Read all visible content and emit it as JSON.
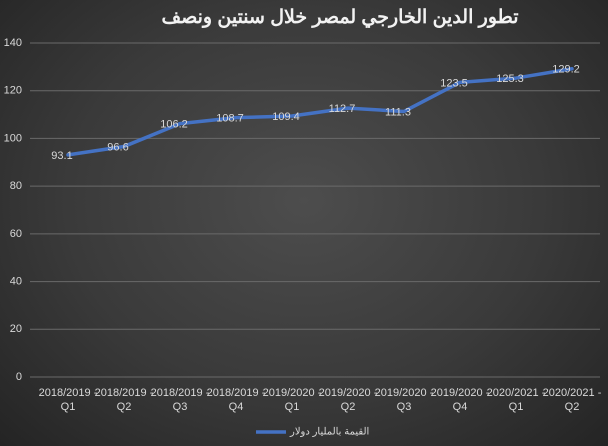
{
  "chart_data": {
    "type": "line",
    "title": "تطور الدين الخارجي لمصر خلال سنتين ونصف",
    "categories": [
      "2018/2019 - Q1",
      "2018/2019 - Q2",
      "2018/2019 - Q3",
      "2018/2019 - Q4",
      "2019/2020 - Q1",
      "2019/2020 -Q2",
      "2019/2020 - Q3",
      "2019/2020 - Q4",
      "2020/2021 - Q1",
      "2020/2021 - Q2"
    ],
    "series": [
      {
        "name": "القيمة بالمليار دولار",
        "color": "#4472c4",
        "values": [
          93.1,
          96.6,
          106.2,
          108.7,
          109.4,
          112.7,
          111.3,
          123.5,
          125.3,
          129.2
        ]
      }
    ],
    "ylim": [
      0,
      140
    ],
    "yticks": [
      0,
      20,
      40,
      60,
      80,
      100,
      120,
      140
    ],
    "grid": true,
    "legend": "bottom"
  }
}
